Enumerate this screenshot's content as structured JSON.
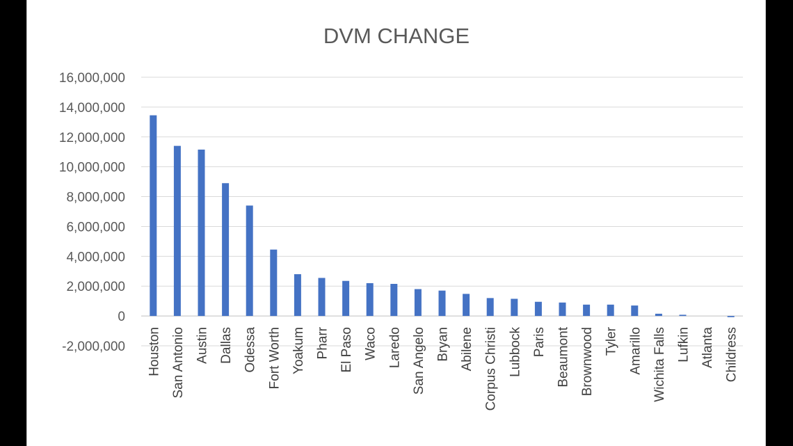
{
  "chart_data": {
    "type": "bar",
    "title": "DVM CHANGE",
    "xlabel": "",
    "ylabel": "",
    "ylim": [
      -2000000,
      16000000
    ],
    "yticks": [
      16000000,
      14000000,
      12000000,
      10000000,
      8000000,
      6000000,
      4000000,
      2000000,
      0,
      -2000000
    ],
    "ytick_labels": [
      "16,000,000",
      "14,000,000",
      "12,000,000",
      "10,000,000",
      "8,000,000",
      "6,000,000",
      "4,000,000",
      "2,000,000",
      "0",
      "-2,000,000"
    ],
    "grid": true,
    "legend": "none",
    "bar_color": "#4472c4",
    "categories": [
      "Houston",
      "San Antonio",
      "Austin",
      "Dallas",
      "Odessa",
      "Fort Worth",
      "Yoakum",
      "Pharr",
      "El Paso",
      "Waco",
      "Laredo",
      "San Angelo",
      "Bryan",
      "Abilene",
      "Corpus Christi",
      "Lubbock",
      "Paris",
      "Beaumont",
      "Brownwood",
      "Tyler",
      "Amarillo",
      "Wichita Falls",
      "Lufkin",
      "Atlanta",
      "Childress"
    ],
    "values": [
      13450000,
      11400000,
      11150000,
      8900000,
      7400000,
      4450000,
      2800000,
      2550000,
      2350000,
      2200000,
      2150000,
      1800000,
      1700000,
      1480000,
      1200000,
      1150000,
      950000,
      900000,
      760000,
      760000,
      700000,
      150000,
      80000,
      0,
      -80000
    ]
  }
}
